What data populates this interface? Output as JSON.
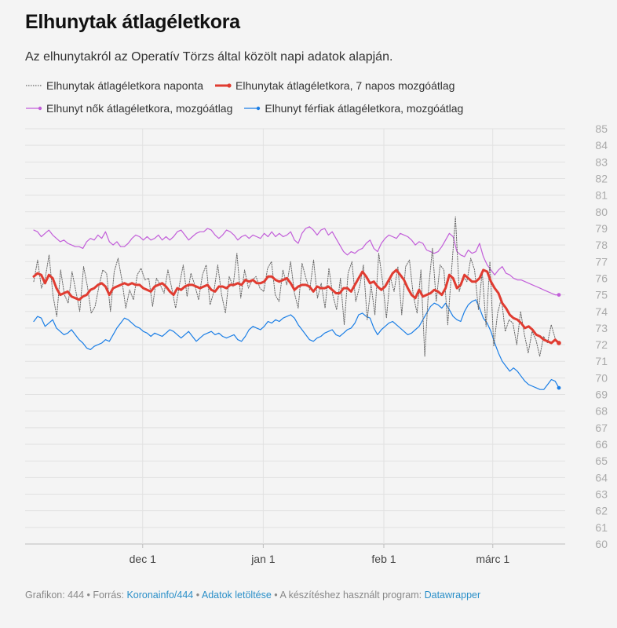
{
  "title": "Elhunytak átlagéletkora",
  "subtitle": "Az elhunytakról az Operatív Törzs által közölt napi adatok alapján.",
  "legend": [
    {
      "label": "Elhunytak átlagéletkora naponta",
      "color": "#666666",
      "style": "dotted"
    },
    {
      "label": "Elhunytak átlagéletkora, 7 napos mozgóátlag",
      "color": "#e03c31",
      "style": "thick"
    },
    {
      "label": "Elhunyt nők átlagéletkora, mozgóátlag",
      "color": "#c25ed9",
      "style": "thin"
    },
    {
      "label": "Elhunyt férfiak átlagéletkora, mozgóátlag",
      "color": "#1a7ee6",
      "style": "thin"
    }
  ],
  "footer": {
    "prefix": "Grafikon: 444 • Forrás: ",
    "source": "Koronainfo/444",
    "sep1": " • ",
    "download": "Adatok letöltése",
    "sep2": " • A készítéshez használt program: ",
    "tool": "Datawrapper"
  },
  "chart_data": {
    "type": "line",
    "x_start": "2020-11-03",
    "x_end": "2021-03-18",
    "x_ticks": [
      {
        "date": "2020-12-01",
        "label": "dec 1"
      },
      {
        "date": "2021-01-01",
        "label": "jan 1"
      },
      {
        "date": "2021-02-01",
        "label": "feb 1"
      },
      {
        "date": "2021-03-01",
        "label": "márc 1"
      }
    ],
    "ylim": [
      60,
      85
    ],
    "y_ticks": [
      60,
      61,
      62,
      63,
      64,
      65,
      66,
      67,
      68,
      69,
      70,
      71,
      72,
      73,
      74,
      75,
      76,
      77,
      78,
      79,
      80,
      81,
      82,
      83,
      84,
      85
    ],
    "grid": true,
    "series": [
      {
        "name": "Elhunytak átlagéletkora naponta",
        "color": "#666666",
        "values": [
          75.8,
          77.1,
          75.4,
          76.0,
          77.4,
          75.0,
          73.7,
          76.5,
          75.0,
          74.5,
          76.4,
          75.2,
          74.0,
          76.7,
          75.5,
          73.9,
          74.3,
          75.5,
          76.5,
          76.3,
          74.0,
          76.4,
          77.2,
          75.9,
          74.2,
          75.3,
          74.7,
          76.2,
          76.6,
          75.9,
          76.0,
          74.3,
          76.0,
          75.6,
          75.1,
          76.5,
          75.4,
          74.2,
          75.6,
          76.8,
          74.9,
          76.3,
          75.6,
          74.7,
          76.2,
          76.8,
          74.4,
          75.2,
          76.8,
          75.0,
          73.9,
          76.1,
          75.5,
          77.5,
          74.8,
          76.5,
          75.4,
          75.9,
          76.1,
          75.4,
          75.2,
          76.6,
          77.0,
          75.0,
          74.6,
          76.5,
          75.6,
          77.0,
          75.1,
          74.2,
          76.9,
          76.0,
          75.3,
          77.1,
          74.8,
          75.7,
          74.2,
          76.6,
          75.0,
          74.1,
          76.0,
          73.2,
          76.3,
          77.0,
          74.6,
          75.5,
          76.8,
          73.5,
          75.6,
          73.8,
          77.5,
          75.8,
          73.6,
          76.1,
          75.2,
          76.7,
          73.8,
          76.7,
          77.1,
          75.0,
          73.9,
          76.5,
          71.3,
          75.4,
          77.8,
          74.6,
          76.8,
          76.5,
          73.2,
          76.5,
          79.7,
          75.2,
          76.1,
          75.8,
          77.2,
          76.5,
          74.1,
          76.4,
          73.1,
          77.0,
          71.9,
          73.9,
          74.8,
          72.8,
          73.5,
          73.3,
          72.0,
          74.0,
          72.6,
          71.5,
          72.8,
          72.3,
          71.3,
          72.5,
          72.1,
          73.2,
          72.4,
          72.0
        ]
      },
      {
        "name": "Elhunytak átlagéletkora, 7 napos mozgóátlag",
        "color": "#e03c31",
        "values": [
          76.1,
          76.3,
          76.2,
          75.7,
          76.2,
          76.0,
          75.4,
          75.0,
          75.1,
          75.2,
          74.9,
          74.8,
          74.7,
          74.9,
          75.0,
          75.3,
          75.4,
          75.6,
          75.7,
          75.5,
          75.0,
          75.4,
          75.5,
          75.6,
          75.7,
          75.6,
          75.7,
          75.6,
          75.6,
          75.4,
          75.3,
          75.2,
          75.5,
          75.6,
          75.7,
          75.5,
          75.2,
          75.0,
          75.4,
          75.3,
          75.5,
          75.6,
          75.6,
          75.5,
          75.4,
          75.5,
          75.6,
          75.3,
          75.2,
          75.5,
          75.5,
          75.4,
          75.6,
          75.6,
          75.7,
          75.6,
          75.9,
          75.8,
          75.9,
          75.7,
          75.7,
          75.8,
          76.1,
          76.1,
          75.9,
          75.8,
          75.9,
          76.0,
          75.7,
          75.3,
          75.5,
          75.6,
          75.6,
          75.5,
          75.2,
          75.5,
          75.4,
          75.4,
          75.5,
          75.3,
          75.1,
          75.1,
          75.4,
          75.4,
          75.2,
          75.6,
          76.0,
          76.4,
          76.1,
          75.7,
          75.8,
          75.5,
          75.3,
          75.5,
          75.9,
          76.3,
          76.5,
          76.2,
          75.9,
          75.4,
          75.0,
          74.8,
          75.3,
          74.9,
          75.0,
          75.1,
          75.3,
          75.2,
          75.0,
          75.4,
          76.2,
          76.0,
          75.4,
          75.6,
          76.2,
          76.0,
          75.8,
          75.8,
          76.0,
          76.5,
          76.4,
          75.8,
          75.4,
          75.1,
          74.5,
          74.2,
          73.8,
          73.6,
          73.5,
          73.3,
          73.0,
          73.1,
          72.9,
          72.6,
          72.5,
          72.3,
          72.2,
          72.1,
          72.3,
          72.1
        ]
      },
      {
        "name": "Elhunyt nők átlagéletkora, mozgóátlag",
        "color": "#c25ed9",
        "values": [
          78.9,
          78.8,
          78.5,
          78.7,
          78.9,
          78.6,
          78.4,
          78.2,
          78.3,
          78.1,
          78.0,
          77.9,
          77.9,
          77.8,
          78.2,
          78.4,
          78.3,
          78.6,
          78.4,
          78.8,
          78.2,
          78.0,
          78.2,
          77.9,
          77.9,
          78.1,
          78.4,
          78.6,
          78.5,
          78.3,
          78.5,
          78.3,
          78.4,
          78.6,
          78.3,
          78.5,
          78.3,
          78.5,
          78.8,
          78.9,
          78.6,
          78.3,
          78.5,
          78.7,
          78.8,
          78.8,
          79.0,
          78.9,
          78.6,
          78.4,
          78.6,
          78.9,
          78.8,
          78.6,
          78.3,
          78.5,
          78.6,
          78.4,
          78.6,
          78.5,
          78.4,
          78.7,
          78.5,
          78.8,
          78.5,
          78.7,
          78.5,
          78.6,
          78.8,
          78.3,
          78.1,
          78.7,
          79.0,
          79.1,
          78.9,
          78.6,
          78.9,
          79.0,
          78.6,
          78.8,
          78.4,
          78.0,
          77.6,
          77.4,
          77.6,
          77.5,
          77.7,
          77.8,
          78.1,
          78.3,
          77.8,
          77.6,
          78.1,
          78.4,
          78.6,
          78.5,
          78.4,
          78.7,
          78.6,
          78.5,
          78.3,
          78.0,
          78.2,
          78.1,
          77.7,
          77.6,
          77.5,
          77.6,
          77.9,
          78.3,
          78.7,
          78.5,
          77.6,
          77.4,
          77.3,
          77.7,
          77.5,
          77.6,
          78.1,
          77.3,
          76.8,
          76.5,
          76.2,
          76.5,
          76.7,
          76.3,
          76.2,
          76.0,
          75.9,
          75.9,
          75.8,
          75.7,
          75.6,
          75.5,
          75.4,
          75.3,
          75.2,
          75.1,
          75.0,
          75.0
        ]
      },
      {
        "name": "Elhunyt férfiak átlagéletkora, mozgóátlag",
        "color": "#1a7ee6",
        "values": [
          73.4,
          73.7,
          73.6,
          73.1,
          73.3,
          73.5,
          73.0,
          72.8,
          72.6,
          72.7,
          72.9,
          72.6,
          72.3,
          72.1,
          71.8,
          71.7,
          71.9,
          72.0,
          72.1,
          72.3,
          72.2,
          72.6,
          73.0,
          73.3,
          73.6,
          73.5,
          73.3,
          73.1,
          73.0,
          72.8,
          72.7,
          72.5,
          72.7,
          72.6,
          72.5,
          72.7,
          72.9,
          72.8,
          72.6,
          72.4,
          72.6,
          72.8,
          72.5,
          72.2,
          72.4,
          72.6,
          72.7,
          72.8,
          72.6,
          72.7,
          72.5,
          72.4,
          72.5,
          72.6,
          72.3,
          72.2,
          72.5,
          72.9,
          73.1,
          73.0,
          72.9,
          73.1,
          73.4,
          73.3,
          73.5,
          73.4,
          73.6,
          73.7,
          73.8,
          73.6,
          73.2,
          72.9,
          72.6,
          72.3,
          72.2,
          72.4,
          72.5,
          72.7,
          72.8,
          72.9,
          72.6,
          72.5,
          72.7,
          72.9,
          73.0,
          73.3,
          73.8,
          73.9,
          73.7,
          73.6,
          73.0,
          72.6,
          72.9,
          73.1,
          73.3,
          73.4,
          73.2,
          73.0,
          72.8,
          72.6,
          72.7,
          72.9,
          73.1,
          73.5,
          73.9,
          74.3,
          74.5,
          74.4,
          74.2,
          74.5,
          74.1,
          73.7,
          73.5,
          73.4,
          74.0,
          74.4,
          74.6,
          74.7,
          74.2,
          73.6,
          73.3,
          72.8,
          72.1,
          71.5,
          71.0,
          70.7,
          70.4,
          70.6,
          70.4,
          70.1,
          69.8,
          69.6,
          69.5,
          69.4,
          69.3,
          69.3,
          69.6,
          69.9,
          69.8,
          69.4
        ]
      }
    ]
  }
}
